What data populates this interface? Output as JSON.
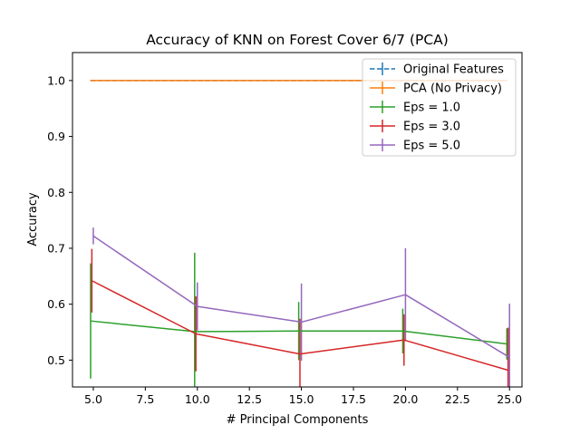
{
  "chart_data": {
    "type": "line",
    "title": "Accuracy of KNN on Forest Cover 6/7 (PCA)",
    "xlabel": "# Principal Components",
    "ylabel": "Accuracy",
    "xlim": [
      4.0,
      25.6
    ],
    "ylim": [
      0.452,
      1.05
    ],
    "xticks": [
      5.0,
      7.5,
      10.0,
      12.5,
      15.0,
      17.5,
      20.0,
      22.5,
      25.0
    ],
    "xtick_labels": [
      "5.0",
      "7.5",
      "10.0",
      "12.5",
      "15.0",
      "17.5",
      "20.0",
      "22.5",
      "25.0"
    ],
    "yticks": [
      0.5,
      0.6,
      0.7,
      0.8,
      0.9,
      1.0
    ],
    "ytick_labels": [
      "0.5",
      "0.6",
      "0.7",
      "0.8",
      "0.9",
      "1.0"
    ],
    "legend_position": "top-right",
    "series": [
      {
        "name": "Original Features",
        "color": "#1f77b4",
        "dashed": true,
        "x": [
          4.87,
          9.87,
          14.87,
          19.87,
          24.87
        ],
        "values": [
          1.0,
          1.0,
          1.0,
          1.0,
          1.0
        ],
        "errors": [
          0.0,
          0.0,
          0.0,
          0.0,
          0.0
        ]
      },
      {
        "name": "PCA (No Privacy)",
        "color": "#ff7f0e",
        "dashed": false,
        "x": [
          4.87,
          9.87,
          14.87,
          19.87,
          24.87
        ],
        "values": [
          1.0,
          1.0,
          1.0,
          1.0,
          1.0
        ],
        "errors": [
          0.0,
          0.0,
          0.0,
          0.0,
          0.0
        ]
      },
      {
        "name": "Eps = 1.0",
        "color": "#2ca02c",
        "dashed": false,
        "x": [
          4.87,
          9.87,
          14.87,
          19.87,
          24.87
        ],
        "values": [
          0.57,
          0.551,
          0.552,
          0.552,
          0.529
        ],
        "errors": [
          0.103,
          0.141,
          0.052,
          0.04,
          0.028
        ]
      },
      {
        "name": "Eps = 3.0",
        "color": "#d62728",
        "dashed": false,
        "x": [
          4.93,
          9.93,
          14.93,
          19.93,
          24.93
        ],
        "values": [
          0.642,
          0.547,
          0.511,
          0.536,
          0.482
        ],
        "errors": [
          0.057,
          0.067,
          0.063,
          0.046,
          0.076
        ]
      },
      {
        "name": "Eps = 5.0",
        "color": "#9467bd",
        "dashed": false,
        "x": [
          5.0,
          10.0,
          15.0,
          20.0,
          25.0
        ],
        "values": [
          0.722,
          0.596,
          0.568,
          0.617,
          0.505
        ],
        "errors": [
          0.015,
          0.043,
          0.069,
          0.083,
          0.096
        ]
      }
    ]
  }
}
